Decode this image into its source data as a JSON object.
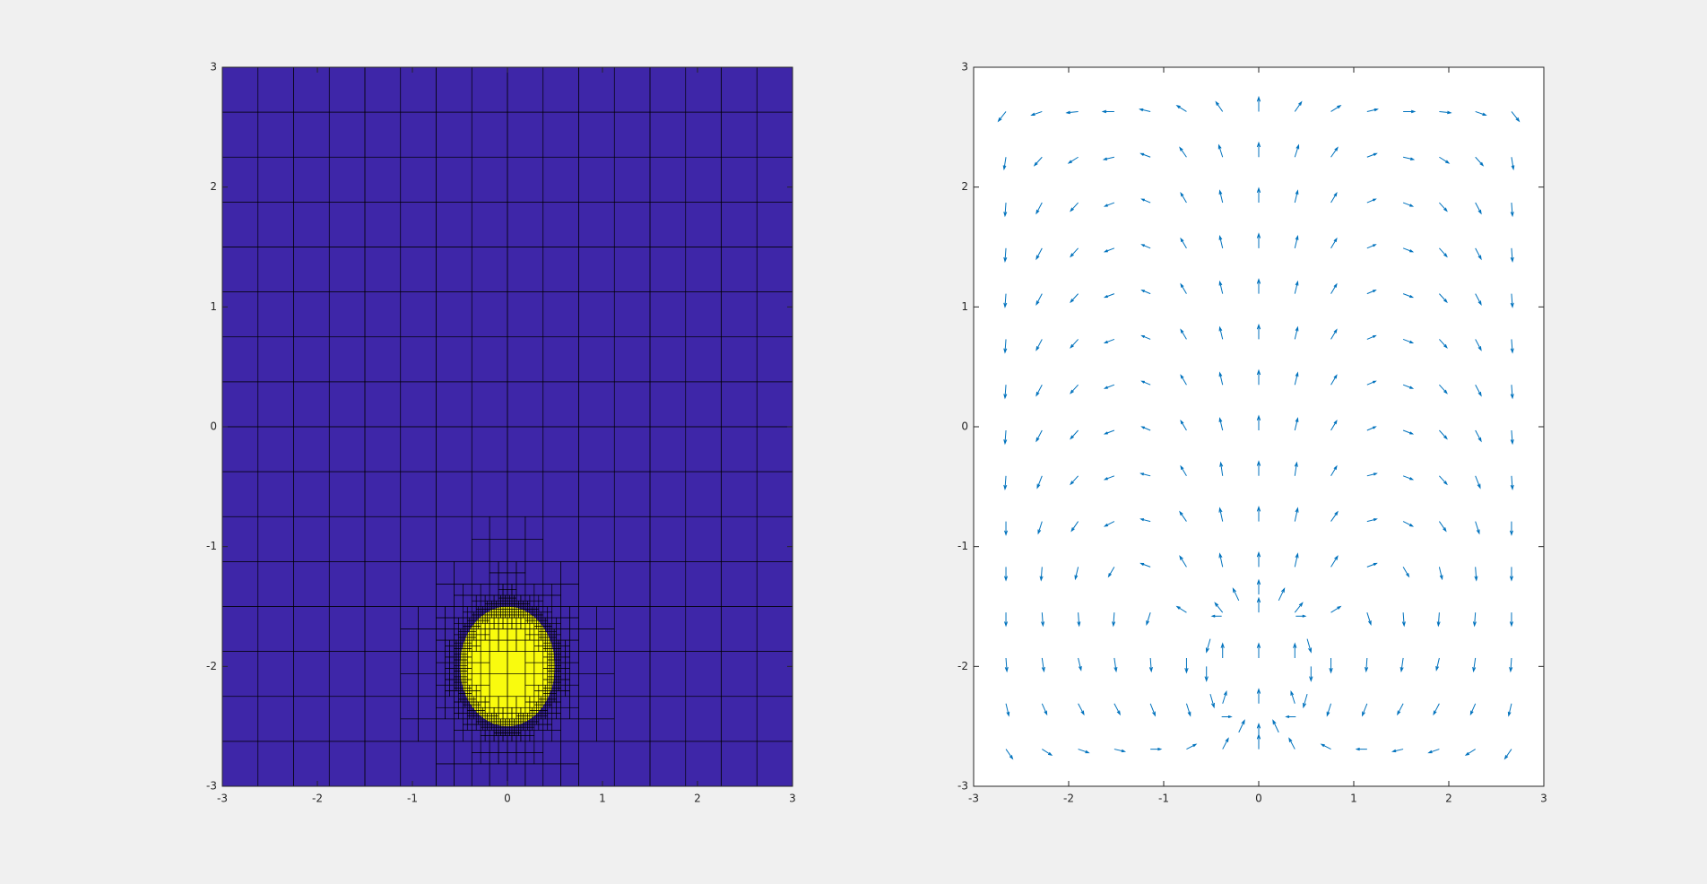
{
  "chart_data": [
    {
      "type": "mesh",
      "xlim": [
        -3,
        3
      ],
      "ylim": [
        -3,
        3
      ],
      "xticks": [
        -3,
        -2,
        -1,
        0,
        1,
        2,
        3
      ],
      "yticks": [
        -3,
        -2,
        -1,
        0,
        1,
        2,
        3
      ],
      "background_color": "#3e26a8",
      "bubble_color": "#f9fb0e",
      "bubble_x": 0,
      "bubble_y": -2,
      "bubble_radius": 0.5,
      "cell_size": 0.375,
      "refine_depth": 4
    },
    {
      "type": "quiver",
      "xlim": [
        -3,
        3
      ],
      "ylim": [
        -3,
        3
      ],
      "xticks": [
        -3,
        -2,
        -1,
        0,
        1,
        2,
        3
      ],
      "yticks": [
        -3,
        -2,
        -1,
        0,
        1,
        2,
        3
      ],
      "series": [
        {
          "color": "#0072bd",
          "x": [
            -2.66,
            -2.28,
            -1.9,
            -1.52,
            -1.14,
            -0.76,
            -0.38,
            0,
            0.38,
            0.76,
            1.14,
            1.52,
            1.9,
            2.28,
            2.66
          ],
          "y": [
            2.63,
            2.25,
            1.87,
            1.49,
            1.11,
            0.73,
            0.35,
            -0.03,
            -0.41,
            -0.79,
            -1.17,
            -1.55,
            -1.93,
            -2.31,
            -2.69
          ],
          "u": [
            [
              -0.08,
              -0.11,
              -0.12,
              -0.12,
              -0.11,
              -0.1,
              -0.07,
              0,
              0.07,
              0.1,
              0.11,
              0.12,
              0.12,
              0.11,
              0.08
            ],
            [
              -0.02,
              -0.08,
              -0.1,
              -0.11,
              -0.1,
              -0.07,
              -0.04,
              0,
              0.04,
              0.07,
              0.1,
              0.11,
              0.1,
              0.08,
              0.02
            ],
            [
              -0.01,
              -0.06,
              -0.08,
              -0.1,
              -0.09,
              -0.06,
              -0.03,
              0,
              0.03,
              0.06,
              0.09,
              0.1,
              0.08,
              0.06,
              0.01
            ],
            [
              -0.01,
              -0.06,
              -0.08,
              -0.1,
              -0.09,
              -0.06,
              -0.03,
              0,
              0.03,
              0.06,
              0.09,
              0.1,
              0.08,
              0.06,
              0.01
            ],
            [
              -0.01,
              -0.06,
              -0.08,
              -0.1,
              -0.09,
              -0.06,
              -0.03,
              0,
              0.03,
              0.06,
              0.09,
              0.1,
              0.08,
              0.06,
              0.01
            ],
            [
              -0.01,
              -0.06,
              -0.08,
              -0.1,
              -0.09,
              -0.06,
              -0.03,
              0,
              0.03,
              0.06,
              0.09,
              0.1,
              0.08,
              0.06,
              0.01
            ],
            [
              -0.01,
              -0.06,
              -0.08,
              -0.1,
              -0.09,
              -0.06,
              -0.03,
              0,
              0.03,
              0.06,
              0.09,
              0.1,
              0.08,
              0.06,
              0.01
            ],
            [
              -0.01,
              -0.06,
              -0.08,
              -0.1,
              -0.09,
              -0.06,
              -0.03,
              0,
              0.03,
              0.06,
              0.09,
              0.1,
              0.08,
              0.06,
              0.01
            ],
            [
              -0.01,
              -0.05,
              -0.08,
              -0.1,
              -0.1,
              -0.06,
              -0.02,
              0,
              0.02,
              0.06,
              0.1,
              0.1,
              0.08,
              0.05,
              0.01
            ],
            [
              0,
              -0.04,
              -0.07,
              -0.1,
              -0.1,
              -0.07,
              -0.03,
              0,
              0.03,
              0.07,
              0.1,
              0.1,
              0.07,
              0.04,
              0
            ],
            [
              0,
              -0.01,
              -0.03,
              -0.06,
              -0.1,
              -0.07,
              -0.03,
              0,
              0.03,
              0.07,
              0.1,
              0.06,
              0.03,
              0.01,
              0
            ],
            [
              0,
              0.01,
              0.01,
              -0.01,
              -0.04,
              -0.1,
              -0.08,
              0,
              0.08,
              0.1,
              0.04,
              0.01,
              -0.01,
              -0.01,
              0
            ],
            [
              0.01,
              0.02,
              0.03,
              0.02,
              0.01,
              0,
              0,
              0,
              0,
              0,
              -0.01,
              -0.02,
              -0.03,
              -0.02,
              -0.01
            ],
            [
              0.03,
              0.05,
              0.06,
              0.06,
              0.05,
              0.04,
              0.04,
              0,
              -0.04,
              -0.04,
              -0.05,
              -0.06,
              -0.06,
              -0.05,
              -0.03
            ],
            [
              0.07,
              0.1,
              0.11,
              0.11,
              0.11,
              0.1,
              0.06,
              0,
              -0.06,
              -0.1,
              -0.11,
              -0.11,
              -0.11,
              -0.1,
              -0.07
            ]
          ],
          "v": [
            [
              -0.08,
              -0.03,
              -0.01,
              0,
              0.02,
              0.05,
              0.08,
              0.12,
              0.08,
              0.05,
              0.02,
              0,
              -0.01,
              -0.03,
              -0.08
            ],
            [
              -0.1,
              -0.07,
              -0.05,
              -0.02,
              0.03,
              0.08,
              0.1,
              0.12,
              0.1,
              0.08,
              0.03,
              -0.02,
              -0.05,
              -0.07,
              -0.1
            ],
            [
              -0.11,
              -0.09,
              -0.07,
              -0.03,
              0.03,
              0.08,
              0.1,
              0.12,
              0.1,
              0.08,
              0.03,
              -0.03,
              -0.07,
              -0.09,
              -0.11
            ],
            [
              -0.11,
              -0.09,
              -0.07,
              -0.03,
              0.03,
              0.08,
              0.1,
              0.12,
              0.1,
              0.08,
              0.03,
              -0.03,
              -0.07,
              -0.09,
              -0.11
            ],
            [
              -0.11,
              -0.09,
              -0.07,
              -0.03,
              0.03,
              0.08,
              0.1,
              0.12,
              0.1,
              0.08,
              0.03,
              -0.03,
              -0.07,
              -0.09,
              -0.11
            ],
            [
              -0.11,
              -0.09,
              -0.07,
              -0.03,
              0.03,
              0.08,
              0.1,
              0.12,
              0.1,
              0.08,
              0.03,
              -0.03,
              -0.07,
              -0.09,
              -0.11
            ],
            [
              -0.11,
              -0.09,
              -0.07,
              -0.03,
              0.03,
              0.08,
              0.1,
              0.12,
              0.1,
              0.08,
              0.03,
              -0.03,
              -0.07,
              -0.09,
              -0.11
            ],
            [
              -0.11,
              -0.09,
              -0.07,
              -0.03,
              0.03,
              0.08,
              0.1,
              0.12,
              0.1,
              0.08,
              0.03,
              -0.03,
              -0.07,
              -0.09,
              -0.11
            ],
            [
              -0.11,
              -0.1,
              -0.07,
              -0.03,
              0.02,
              0.08,
              0.11,
              0.12,
              0.11,
              0.08,
              0.02,
              -0.03,
              -0.07,
              -0.1,
              -0.11
            ],
            [
              -0.11,
              -0.1,
              -0.08,
              -0.04,
              0.02,
              0.08,
              0.11,
              0.12,
              0.11,
              0.08,
              0.02,
              -0.04,
              -0.08,
              -0.1,
              -0.11
            ],
            [
              -0.11,
              -0.11,
              -0.1,
              -0.08,
              0.03,
              0.09,
              0.11,
              0.12,
              0.11,
              0.09,
              0.03,
              -0.08,
              -0.1,
              -0.11,
              -0.11
            ],
            [
              -0.11,
              -0.11,
              -0.11,
              -0.11,
              -0.1,
              0.05,
              0.08,
              0.12,
              0.08,
              0.05,
              -0.1,
              -0.11,
              -0.11,
              -0.11,
              -0.11
            ],
            [
              -0.11,
              -0.11,
              -0.1,
              -0.11,
              -0.11,
              -0.12,
              0.12,
              0.12,
              0.12,
              -0.12,
              -0.11,
              -0.11,
              -0.1,
              -0.11,
              -0.11
            ],
            [
              -0.1,
              -0.09,
              -0.09,
              -0.09,
              -0.1,
              -0.1,
              0.1,
              0.12,
              0.1,
              -0.1,
              -0.1,
              -0.09,
              -0.09,
              -0.09,
              -0.1
            ],
            [
              -0.08,
              -0.05,
              -0.03,
              -0.02,
              0,
              0.04,
              0.09,
              0.12,
              0.09,
              0.04,
              0,
              -0.02,
              -0.03,
              -0.05,
              -0.08
            ]
          ]
        },
        {
          "color": "#0072bd",
          "points_x": [
            0.55,
            0.51,
            0.39,
            0.21,
            0,
            -0.21,
            -0.39,
            -0.51,
            -0.55,
            -0.51,
            -0.39,
            -0.21,
            0,
            0.21,
            0.39,
            0.51
          ],
          "points_y": [
            -2,
            -1.77,
            -1.58,
            -1.45,
            -1.4,
            -1.45,
            -1.58,
            -1.77,
            -2,
            -2.23,
            -2.42,
            -2.55,
            -2.6,
            -2.55,
            -2.42,
            -2.23
          ],
          "points_u": [
            0,
            0.04,
            0.1,
            0.06,
            0,
            -0.06,
            -0.1,
            -0.04,
            0,
            0.04,
            0.1,
            0.06,
            0,
            -0.06,
            -0.1,
            -0.04
          ],
          "points_v": [
            -0.12,
            -0.11,
            0,
            0.1,
            0.12,
            0.1,
            0,
            -0.11,
            -0.12,
            -0.11,
            0,
            0.1,
            0.12,
            0.1,
            0,
            -0.11
          ]
        }
      ]
    }
  ]
}
